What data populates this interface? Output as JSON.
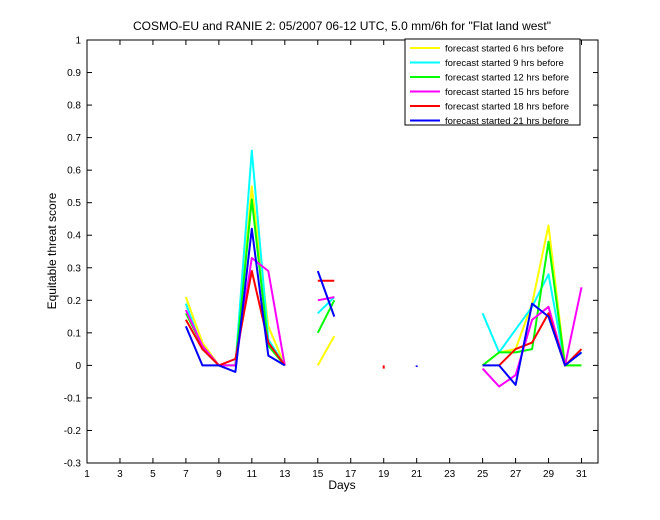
{
  "chart_data": {
    "type": "line",
    "title": "COSMO-EU and RANIE 2: 05/2007 06-12 UTC, 5.0 mm/6h for \"Flat land west\"",
    "xlabel": "Days",
    "ylabel": "Equitable threat score",
    "xlim": [
      1,
      32
    ],
    "ylim": [
      -0.3,
      1
    ],
    "xticks": [
      1,
      3,
      5,
      7,
      9,
      11,
      13,
      15,
      17,
      19,
      21,
      23,
      25,
      27,
      29,
      31
    ],
    "yticks": [
      -0.3,
      -0.2,
      -0.1,
      0,
      0.1,
      0.2,
      0.3,
      0.4,
      0.5,
      0.6,
      0.7,
      0.8,
      0.9,
      1
    ],
    "ytick_labels": [
      "-0.3",
      "-0.2",
      "-0.1",
      "0",
      "0.1",
      "0.2",
      "0.3",
      "0.4",
      "0.5",
      "0.6",
      "0.7",
      "0.8",
      "0.9",
      "1"
    ],
    "grid": false,
    "legend_position": "top-right",
    "series": [
      {
        "name": "forecast started 6 hrs before",
        "color": "#ffff00",
        "points": [
          [
            7,
            0.21
          ],
          [
            8,
            0.07
          ],
          [
            9,
            0.0
          ],
          [
            10,
            0.0
          ],
          [
            11,
            0.55
          ],
          [
            12,
            0.12
          ],
          [
            13,
            0.0
          ],
          null,
          [
            15,
            0.0
          ],
          [
            16,
            0.09
          ],
          null,
          [
            25,
            0.0
          ],
          [
            26,
            0.04
          ],
          [
            27,
            0.05
          ],
          [
            28,
            0.19
          ],
          [
            29,
            0.43
          ],
          [
            30,
            0.0
          ],
          [
            31,
            0.0
          ]
        ]
      },
      {
        "name": "forecast started 9 hrs before",
        "color": "#00ffff",
        "points": [
          [
            7,
            0.19
          ],
          [
            8,
            0.05
          ],
          [
            9,
            0.0
          ],
          [
            10,
            0.0
          ],
          [
            11,
            0.66
          ],
          [
            12,
            0.08
          ],
          [
            13,
            0.0
          ],
          null,
          [
            15,
            0.16
          ],
          [
            16,
            0.21
          ],
          null,
          [
            25,
            0.16
          ],
          [
            26,
            0.04
          ],
          [
            27,
            0.11
          ],
          [
            28,
            0.18
          ],
          [
            29,
            0.28
          ],
          [
            30,
            0.0
          ],
          [
            31,
            0.04
          ]
        ]
      },
      {
        "name": "forecast started 12 hrs before",
        "color": "#00ff00",
        "points": [
          [
            7,
            0.16
          ],
          [
            8,
            0.06
          ],
          [
            9,
            0.0
          ],
          [
            10,
            0.0
          ],
          [
            11,
            0.51
          ],
          [
            12,
            0.06
          ],
          [
            13,
            0.0
          ],
          null,
          [
            15,
            0.1
          ],
          [
            16,
            0.2
          ],
          null,
          [
            25,
            0.0
          ],
          [
            26,
            0.04
          ],
          [
            27,
            0.04
          ],
          [
            28,
            0.05
          ],
          [
            29,
            0.38
          ],
          [
            30,
            0.0
          ],
          [
            31,
            0.0
          ]
        ]
      },
      {
        "name": "forecast started 15 hrs before",
        "color": "#ff00ff",
        "points": [
          [
            7,
            0.17
          ],
          [
            8,
            0.06
          ],
          [
            9,
            0.0
          ],
          [
            10,
            0.0
          ],
          [
            11,
            0.33
          ],
          [
            12,
            0.29
          ],
          [
            13,
            0.0
          ],
          null,
          [
            15,
            0.2
          ],
          [
            16,
            0.21
          ],
          null,
          [
            25,
            -0.01
          ],
          [
            26,
            -0.065
          ],
          [
            27,
            -0.03
          ],
          [
            28,
            0.14
          ],
          [
            29,
            0.18
          ],
          [
            30,
            0.0
          ],
          [
            31,
            0.24
          ]
        ]
      },
      {
        "name": "forecast started 18 hrs before",
        "color": "#ff0000",
        "points": [
          [
            7,
            0.14
          ],
          [
            8,
            0.05
          ],
          [
            9,
            0.0
          ],
          [
            10,
            0.02
          ],
          [
            11,
            0.29
          ],
          [
            12,
            0.07
          ],
          [
            13,
            0.0
          ],
          null,
          [
            15,
            0.26
          ],
          [
            16,
            0.26
          ],
          null,
          [
            19,
            0.0
          ],
          [
            19,
            -0.01
          ],
          null,
          [
            26,
            0.0
          ],
          [
            27,
            0.05
          ],
          [
            28,
            0.07
          ],
          [
            29,
            0.16
          ],
          [
            30,
            0.0
          ],
          [
            31,
            0.05
          ]
        ]
      },
      {
        "name": "forecast started 21 hrs before",
        "color": "#0000ff",
        "points": [
          [
            7,
            0.12
          ],
          [
            8,
            0.0
          ],
          [
            9,
            0.0
          ],
          [
            10,
            -0.02
          ],
          [
            11,
            0.42
          ],
          [
            12,
            0.03
          ],
          [
            13,
            0.0
          ],
          null,
          [
            15,
            0.29
          ],
          [
            16,
            0.15
          ],
          null,
          [
            21,
            0.0
          ],
          [
            21,
            -0.005
          ],
          null,
          [
            25,
            0.0
          ],
          [
            26,
            0.0
          ],
          [
            27,
            -0.06
          ],
          [
            28,
            0.19
          ],
          [
            29,
            0.15
          ],
          [
            30,
            0.0
          ],
          [
            31,
            0.04
          ]
        ]
      }
    ]
  }
}
